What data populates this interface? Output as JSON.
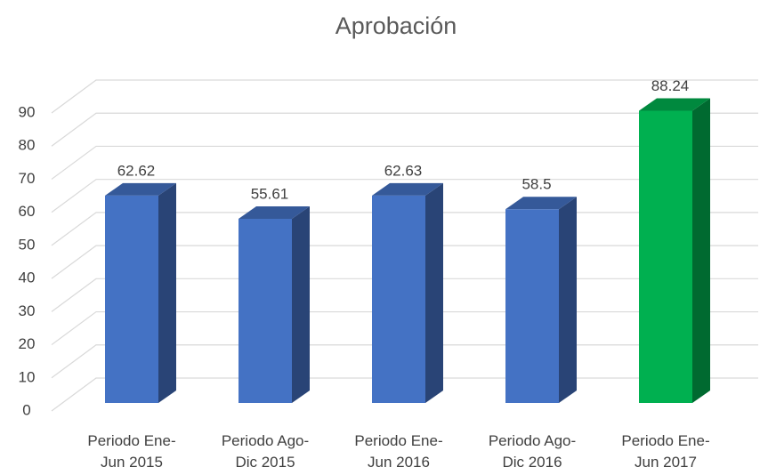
{
  "chart_data": {
    "type": "bar3d",
    "title": "Aprobación",
    "categories": [
      "Periodo Ene-Jun 2015",
      "Periodo Ago-Dic 2015",
      "Periodo Ene-Jun 2016",
      "Periodo Ago-Dic 2016",
      "Periodo Ene-Jun 2017"
    ],
    "values": [
      62.62,
      55.61,
      62.63,
      58.5,
      88.24
    ],
    "colors": [
      "#4472c4",
      "#4472c4",
      "#4472c4",
      "#4472c4",
      "#00b050"
    ],
    "ylim": [
      0,
      90
    ],
    "yticks": [
      0,
      10,
      20,
      30,
      40,
      50,
      60,
      70,
      80,
      90
    ],
    "grid": true
  }
}
